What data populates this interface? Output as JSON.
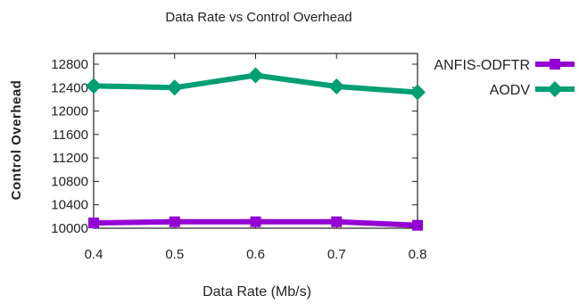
{
  "chart_data": {
    "type": "line",
    "title": "Data Rate vs Control Overhead",
    "xlabel": "Data Rate (Mb/s)",
    "ylabel": "Control Overhead",
    "x": [
      0.4,
      0.5,
      0.6,
      0.7,
      0.8
    ],
    "x_tick_labels": [
      "0.4",
      "0.5",
      "0.6",
      "0.7",
      "0.8"
    ],
    "y_tick_values": [
      10000,
      10400,
      10800,
      11200,
      11600,
      12000,
      12400,
      12800
    ],
    "y_tick_labels": [
      "10000",
      "10400",
      "10800",
      "11200",
      "11600",
      "12000",
      "12400",
      "12800"
    ],
    "xlim": [
      0.4,
      0.8
    ],
    "ylim": [
      10000,
      12900
    ],
    "grid": false,
    "legend_position": "outside-right",
    "series": [
      {
        "name": "ANFIS-ODFTR",
        "color": "#9400d3",
        "marker": "square",
        "values": [
          10090,
          10110,
          10110,
          10110,
          10050
        ]
      },
      {
        "name": "AODV",
        "color": "#009e73",
        "marker": "diamond",
        "values": [
          12430,
          12400,
          12610,
          12420,
          12320
        ]
      }
    ]
  }
}
